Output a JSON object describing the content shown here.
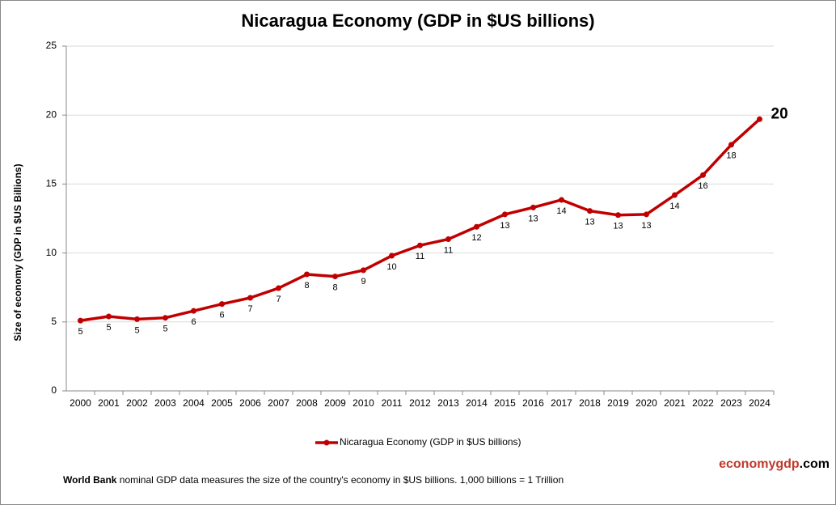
{
  "chart_data": {
    "type": "line",
    "title": "Nicaragua Economy (GDP in $US billions)",
    "y_label": "Size of economy (GDP in $US Billions)",
    "categories": [
      "2000",
      "2001",
      "2002",
      "2003",
      "2004",
      "2005",
      "2006",
      "2007",
      "2008",
      "2009",
      "2010",
      "2011",
      "2012",
      "2013",
      "2014",
      "2015",
      "2016",
      "2017",
      "2018",
      "2019",
      "2020",
      "2021",
      "2022",
      "2023",
      "2024"
    ],
    "series": [
      {
        "name": "Nicaragua Economy (GDP in $US billions)",
        "color": "#c00000",
        "values": [
          5.1,
          5.4,
          5.2,
          5.3,
          5.8,
          6.3,
          6.75,
          7.45,
          8.45,
          8.3,
          8.75,
          9.8,
          10.55,
          11.0,
          11.9,
          12.8,
          13.3,
          13.85,
          13.05,
          12.75,
          12.8,
          14.2,
          15.65,
          17.85,
          19.7
        ],
        "value_labels": [
          "5",
          "5",
          "5",
          "5",
          "6",
          "6",
          "7",
          "7",
          "8",
          "8",
          "9",
          "10",
          "11",
          "11",
          "12",
          "13",
          "13",
          "14",
          "13",
          "13",
          "13",
          "14",
          "16",
          "18",
          "20"
        ]
      }
    ],
    "ylim": [
      0,
      25
    ],
    "yticks": [
      0,
      5,
      10,
      15,
      20,
      25
    ],
    "grid": true,
    "legend": "bottom"
  },
  "footer": {
    "source": "World Bank",
    "text": "nominal GDP data  measures the size of the country's economy in $US billions. 1,000 billions = 1 Trillion",
    "brand": [
      "economygdp",
      ".com"
    ]
  }
}
